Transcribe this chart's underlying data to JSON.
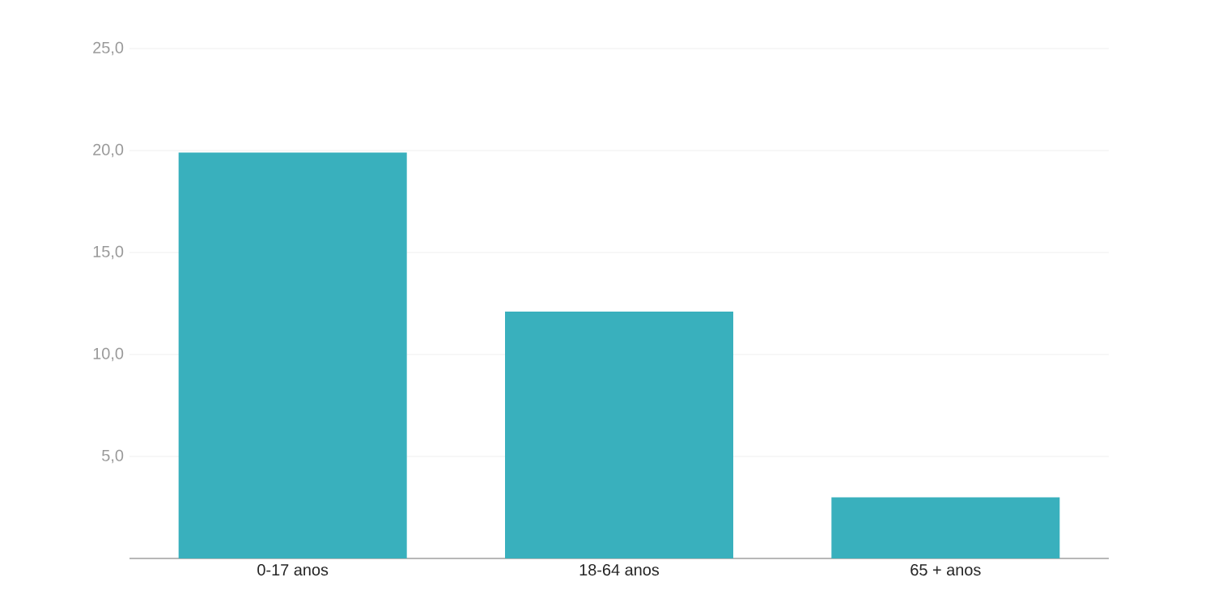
{
  "chart_data": {
    "type": "bar",
    "categories": [
      "0-17 anos",
      "18-64 anos",
      "65 + anos"
    ],
    "values": [
      19.9,
      12.1,
      3.0
    ],
    "color": "#39b0bd",
    "ylim": [
      0,
      25
    ],
    "yticks": [
      {
        "value": 5,
        "label": "5,0"
      },
      {
        "value": 10,
        "label": "10,0"
      },
      {
        "value": 15,
        "label": "15,0"
      },
      {
        "value": 20,
        "label": "20,0"
      },
      {
        "value": 25,
        "label": "25,0"
      }
    ],
    "grid": "y"
  }
}
